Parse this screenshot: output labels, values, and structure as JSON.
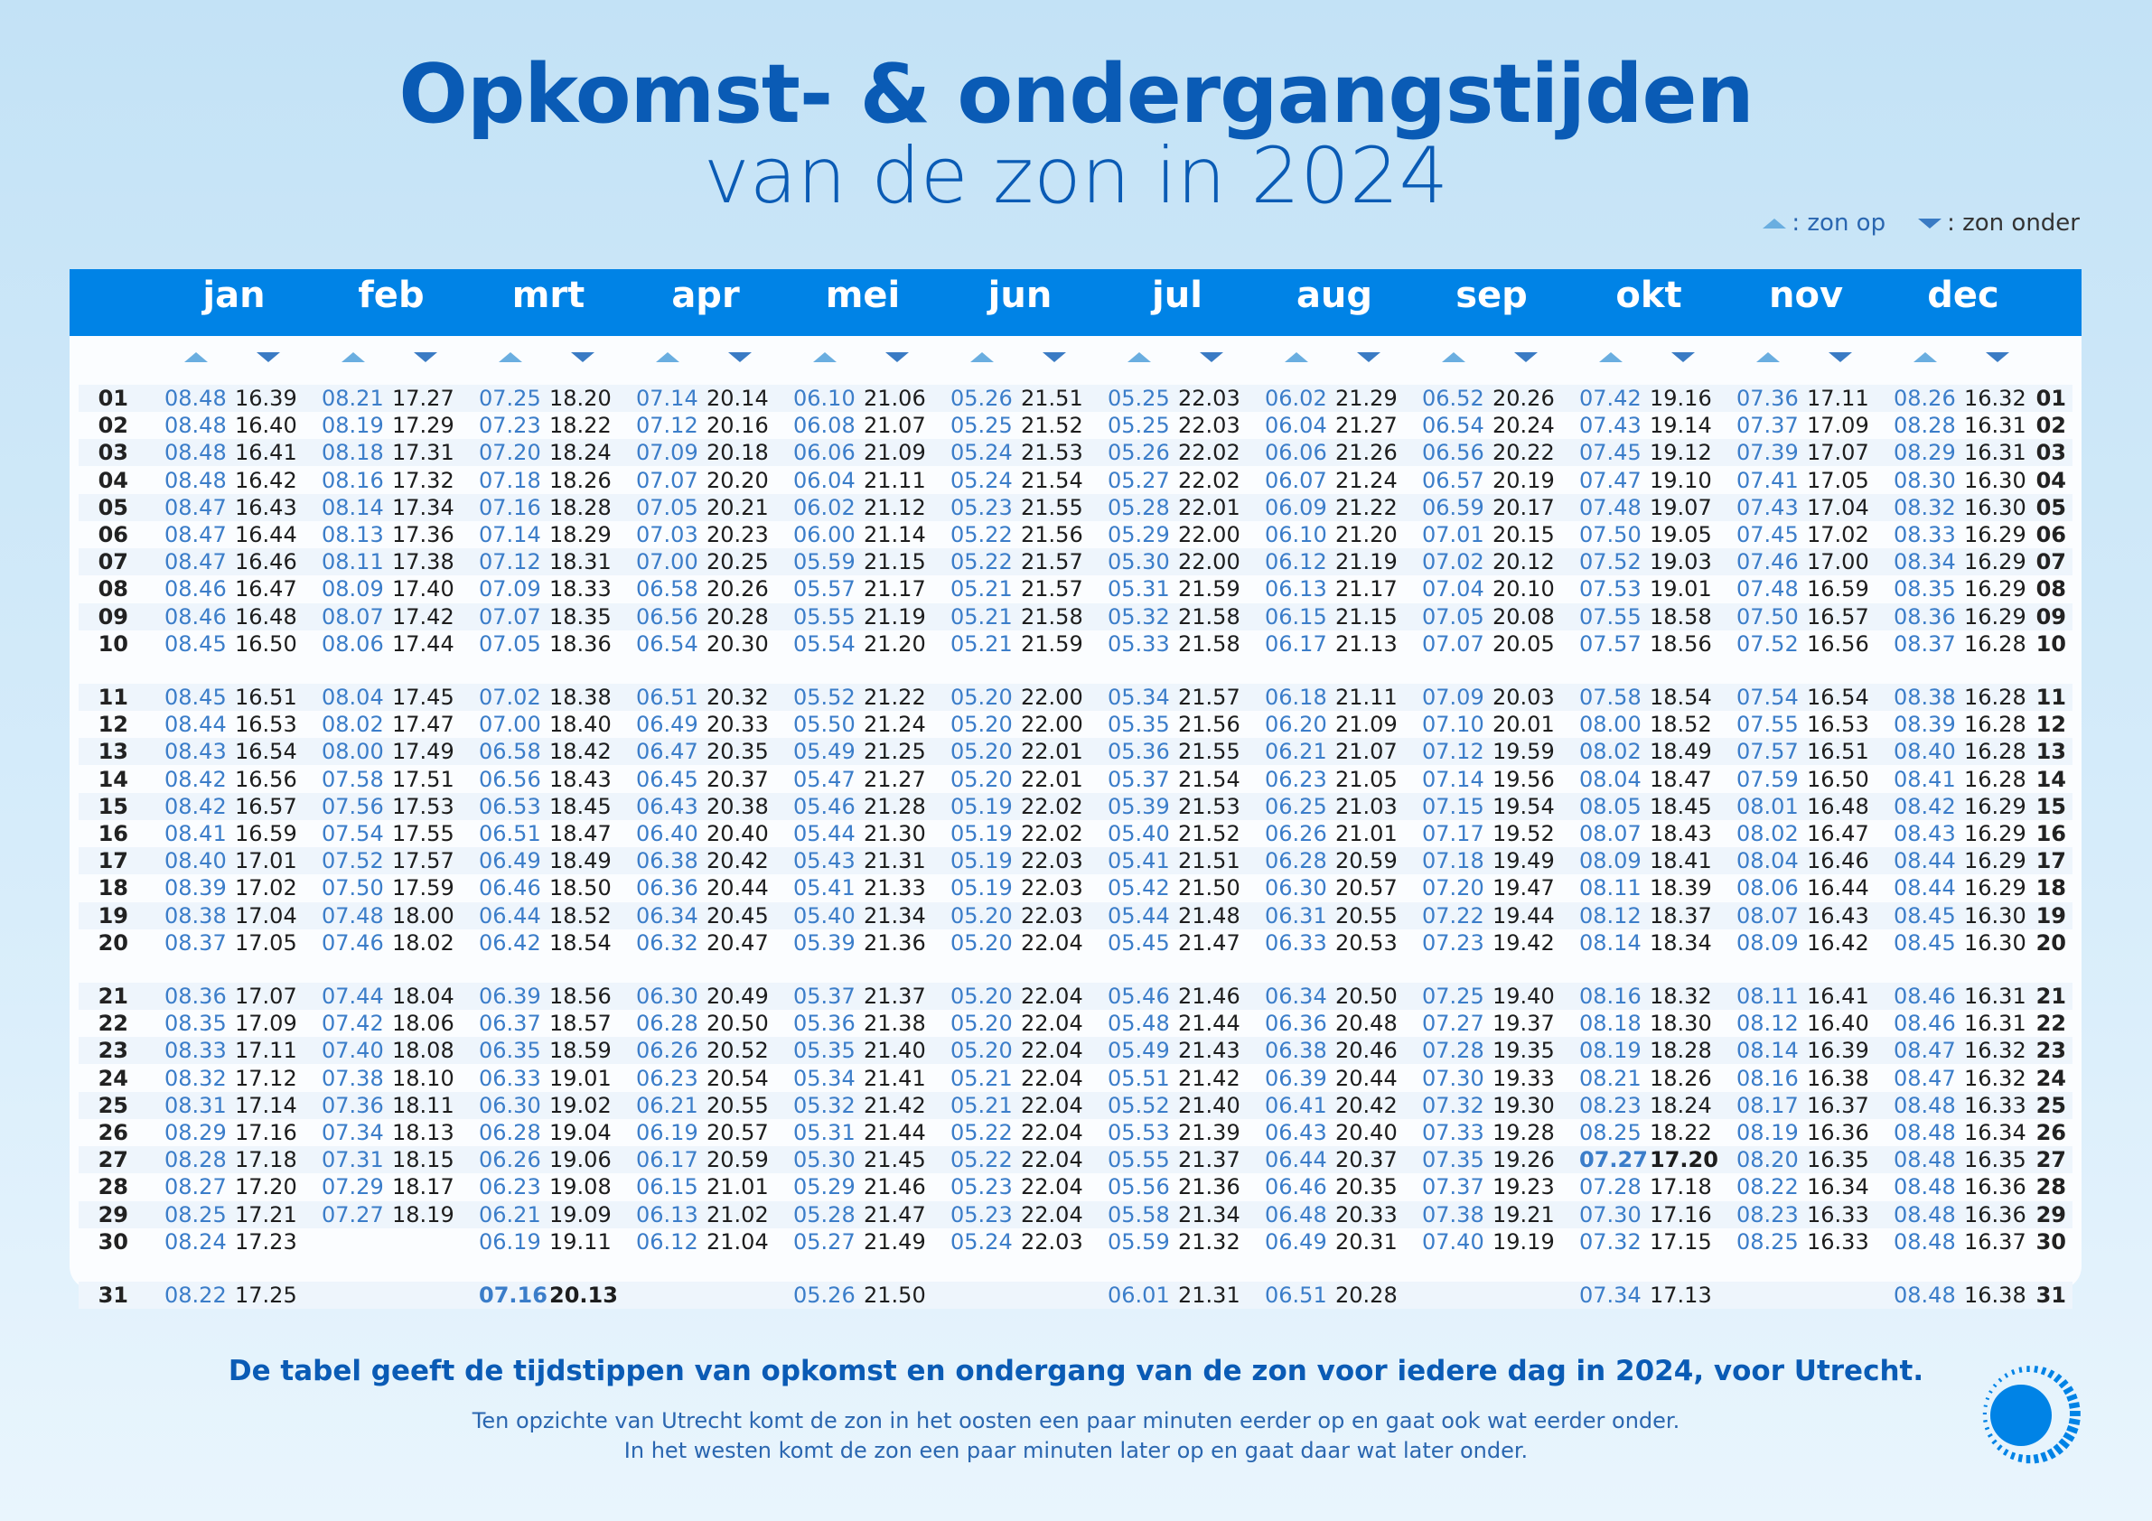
{
  "title": {
    "line1": "Opkomst- & ondergangstijden",
    "line2": "van de zon in 2024"
  },
  "legend": {
    "rise_label": ": zon op",
    "set_label": ": zon onder"
  },
  "colors": {
    "header": "#0083e6",
    "title": "#0a5bb5",
    "rise": "#3b7dc9",
    "set": "#1d1d1d"
  },
  "months": [
    {
      "name": "jan",
      "rise": [
        "08.48",
        "08.48",
        "08.48",
        "08.48",
        "08.47",
        "08.47",
        "08.47",
        "08.46",
        "08.46",
        "08.45",
        "08.45",
        "08.44",
        "08.43",
        "08.42",
        "08.42",
        "08.41",
        "08.40",
        "08.39",
        "08.38",
        "08.37",
        "08.36",
        "08.35",
        "08.33",
        "08.32",
        "08.31",
        "08.29",
        "08.28",
        "08.27",
        "08.25",
        "08.24",
        "08.22"
      ],
      "set": [
        "16.39",
        "16.40",
        "16.41",
        "16.42",
        "16.43",
        "16.44",
        "16.46",
        "16.47",
        "16.48",
        "16.50",
        "16.51",
        "16.53",
        "16.54",
        "16.56",
        "16.57",
        "16.59",
        "17.01",
        "17.02",
        "17.04",
        "17.05",
        "17.07",
        "17.09",
        "17.11",
        "17.12",
        "17.14",
        "17.16",
        "17.18",
        "17.20",
        "17.21",
        "17.23",
        "17.25"
      ]
    },
    {
      "name": "feb",
      "rise": [
        "08.21",
        "08.19",
        "08.18",
        "08.16",
        "08.14",
        "08.13",
        "08.11",
        "08.09",
        "08.07",
        "08.06",
        "08.04",
        "08.02",
        "08.00",
        "07.58",
        "07.56",
        "07.54",
        "07.52",
        "07.50",
        "07.48",
        "07.46",
        "07.44",
        "07.42",
        "07.40",
        "07.38",
        "07.36",
        "07.34",
        "07.31",
        "07.29",
        "07.27"
      ],
      "set": [
        "17.27",
        "17.29",
        "17.31",
        "17.32",
        "17.34",
        "17.36",
        "17.38",
        "17.40",
        "17.42",
        "17.44",
        "17.45",
        "17.47",
        "17.49",
        "17.51",
        "17.53",
        "17.55",
        "17.57",
        "17.59",
        "18.00",
        "18.02",
        "18.04",
        "18.06",
        "18.08",
        "18.10",
        "18.11",
        "18.13",
        "18.15",
        "18.17",
        "18.19"
      ]
    },
    {
      "name": "mrt",
      "rise": [
        "07.25",
        "07.23",
        "07.20",
        "07.18",
        "07.16",
        "07.14",
        "07.12",
        "07.09",
        "07.07",
        "07.05",
        "07.02",
        "07.00",
        "06.58",
        "06.56",
        "06.53",
        "06.51",
        "06.49",
        "06.46",
        "06.44",
        "06.42",
        "06.39",
        "06.37",
        "06.35",
        "06.33",
        "06.30",
        "06.28",
        "06.26",
        "06.23",
        "06.21",
        "06.19",
        "07.16"
      ],
      "set": [
        "18.20",
        "18.22",
        "18.24",
        "18.26",
        "18.28",
        "18.29",
        "18.31",
        "18.33",
        "18.35",
        "18.36",
        "18.38",
        "18.40",
        "18.42",
        "18.43",
        "18.45",
        "18.47",
        "18.49",
        "18.50",
        "18.52",
        "18.54",
        "18.56",
        "18.57",
        "18.59",
        "19.01",
        "19.02",
        "19.04",
        "19.06",
        "19.08",
        "19.09",
        "19.11",
        "20.13"
      ],
      "bold_day": 31
    },
    {
      "name": "apr",
      "rise": [
        "07.14",
        "07.12",
        "07.09",
        "07.07",
        "07.05",
        "07.03",
        "07.00",
        "06.58",
        "06.56",
        "06.54",
        "06.51",
        "06.49",
        "06.47",
        "06.45",
        "06.43",
        "06.40",
        "06.38",
        "06.36",
        "06.34",
        "06.32",
        "06.30",
        "06.28",
        "06.26",
        "06.23",
        "06.21",
        "06.19",
        "06.17",
        "06.15",
        "06.13",
        "06.12"
      ],
      "set": [
        "20.14",
        "20.16",
        "20.18",
        "20.20",
        "20.21",
        "20.23",
        "20.25",
        "20.26",
        "20.28",
        "20.30",
        "20.32",
        "20.33",
        "20.35",
        "20.37",
        "20.38",
        "20.40",
        "20.42",
        "20.44",
        "20.45",
        "20.47",
        "20.49",
        "20.50",
        "20.52",
        "20.54",
        "20.55",
        "20.57",
        "20.59",
        "21.01",
        "21.02",
        "21.04"
      ]
    },
    {
      "name": "mei",
      "rise": [
        "06.10",
        "06.08",
        "06.06",
        "06.04",
        "06.02",
        "06.00",
        "05.59",
        "05.57",
        "05.55",
        "05.54",
        "05.52",
        "05.50",
        "05.49",
        "05.47",
        "05.46",
        "05.44",
        "05.43",
        "05.41",
        "05.40",
        "05.39",
        "05.37",
        "05.36",
        "05.35",
        "05.34",
        "05.32",
        "05.31",
        "05.30",
        "05.29",
        "05.28",
        "05.27",
        "05.26"
      ],
      "set": [
        "21.06",
        "21.07",
        "21.09",
        "21.11",
        "21.12",
        "21.14",
        "21.15",
        "21.17",
        "21.19",
        "21.20",
        "21.22",
        "21.24",
        "21.25",
        "21.27",
        "21.28",
        "21.30",
        "21.31",
        "21.33",
        "21.34",
        "21.36",
        "21.37",
        "21.38",
        "21.40",
        "21.41",
        "21.42",
        "21.44",
        "21.45",
        "21.46",
        "21.47",
        "21.49",
        "21.50"
      ]
    },
    {
      "name": "jun",
      "rise": [
        "05.26",
        "05.25",
        "05.24",
        "05.24",
        "05.23",
        "05.22",
        "05.22",
        "05.21",
        "05.21",
        "05.21",
        "05.20",
        "05.20",
        "05.20",
        "05.20",
        "05.19",
        "05.19",
        "05.19",
        "05.19",
        "05.20",
        "05.20",
        "05.20",
        "05.20",
        "05.20",
        "05.21",
        "05.21",
        "05.22",
        "05.22",
        "05.23",
        "05.23",
        "05.24"
      ],
      "set": [
        "21.51",
        "21.52",
        "21.53",
        "21.54",
        "21.55",
        "21.56",
        "21.57",
        "21.57",
        "21.58",
        "21.59",
        "22.00",
        "22.00",
        "22.01",
        "22.01",
        "22.02",
        "22.02",
        "22.03",
        "22.03",
        "22.03",
        "22.04",
        "22.04",
        "22.04",
        "22.04",
        "22.04",
        "22.04",
        "22.04",
        "22.04",
        "22.04",
        "22.04",
        "22.03"
      ]
    },
    {
      "name": "jul",
      "rise": [
        "05.25",
        "05.25",
        "05.26",
        "05.27",
        "05.28",
        "05.29",
        "05.30",
        "05.31",
        "05.32",
        "05.33",
        "05.34",
        "05.35",
        "05.36",
        "05.37",
        "05.39",
        "05.40",
        "05.41",
        "05.42",
        "05.44",
        "05.45",
        "05.46",
        "05.48",
        "05.49",
        "05.51",
        "05.52",
        "05.53",
        "05.55",
        "05.56",
        "05.58",
        "05.59",
        "06.01"
      ],
      "set": [
        "22.03",
        "22.03",
        "22.02",
        "22.02",
        "22.01",
        "22.00",
        "22.00",
        "21.59",
        "21.58",
        "21.58",
        "21.57",
        "21.56",
        "21.55",
        "21.54",
        "21.53",
        "21.52",
        "21.51",
        "21.50",
        "21.48",
        "21.47",
        "21.46",
        "21.44",
        "21.43",
        "21.42",
        "21.40",
        "21.39",
        "21.37",
        "21.36",
        "21.34",
        "21.32",
        "21.31"
      ]
    },
    {
      "name": "aug",
      "rise": [
        "06.02",
        "06.04",
        "06.06",
        "06.07",
        "06.09",
        "06.10",
        "06.12",
        "06.13",
        "06.15",
        "06.17",
        "06.18",
        "06.20",
        "06.21",
        "06.23",
        "06.25",
        "06.26",
        "06.28",
        "06.30",
        "06.31",
        "06.33",
        "06.34",
        "06.36",
        "06.38",
        "06.39",
        "06.41",
        "06.43",
        "06.44",
        "06.46",
        "06.48",
        "06.49",
        "06.51"
      ],
      "set": [
        "21.29",
        "21.27",
        "21.26",
        "21.24",
        "21.22",
        "21.20",
        "21.19",
        "21.17",
        "21.15",
        "21.13",
        "21.11",
        "21.09",
        "21.07",
        "21.05",
        "21.03",
        "21.01",
        "20.59",
        "20.57",
        "20.55",
        "20.53",
        "20.50",
        "20.48",
        "20.46",
        "20.44",
        "20.42",
        "20.40",
        "20.37",
        "20.35",
        "20.33",
        "20.31",
        "20.28"
      ]
    },
    {
      "name": "sep",
      "rise": [
        "06.52",
        "06.54",
        "06.56",
        "06.57",
        "06.59",
        "07.01",
        "07.02",
        "07.04",
        "07.05",
        "07.07",
        "07.09",
        "07.10",
        "07.12",
        "07.14",
        "07.15",
        "07.17",
        "07.18",
        "07.20",
        "07.22",
        "07.23",
        "07.25",
        "07.27",
        "07.28",
        "07.30",
        "07.32",
        "07.33",
        "07.35",
        "07.37",
        "07.38",
        "07.40"
      ],
      "set": [
        "20.26",
        "20.24",
        "20.22",
        "20.19",
        "20.17",
        "20.15",
        "20.12",
        "20.10",
        "20.08",
        "20.05",
        "20.03",
        "20.01",
        "19.59",
        "19.56",
        "19.54",
        "19.52",
        "19.49",
        "19.47",
        "19.44",
        "19.42",
        "19.40",
        "19.37",
        "19.35",
        "19.33",
        "19.30",
        "19.28",
        "19.26",
        "19.23",
        "19.21",
        "19.19"
      ]
    },
    {
      "name": "okt",
      "rise": [
        "07.42",
        "07.43",
        "07.45",
        "07.47",
        "07.48",
        "07.50",
        "07.52",
        "07.53",
        "07.55",
        "07.57",
        "07.58",
        "08.00",
        "08.02",
        "08.04",
        "08.05",
        "08.07",
        "08.09",
        "08.11",
        "08.12",
        "08.14",
        "08.16",
        "08.18",
        "08.19",
        "08.21",
        "08.23",
        "08.25",
        "07.27",
        "07.28",
        "07.30",
        "07.32",
        "07.34"
      ],
      "set": [
        "19.16",
        "19.14",
        "19.12",
        "19.10",
        "19.07",
        "19.05",
        "19.03",
        "19.01",
        "18.58",
        "18.56",
        "18.54",
        "18.52",
        "18.49",
        "18.47",
        "18.45",
        "18.43",
        "18.41",
        "18.39",
        "18.37",
        "18.34",
        "18.32",
        "18.30",
        "18.28",
        "18.26",
        "18.24",
        "18.22",
        "17.20",
        "17.18",
        "17.16",
        "17.15",
        "17.13"
      ],
      "bold_day": 27
    },
    {
      "name": "nov",
      "rise": [
        "07.36",
        "07.37",
        "07.39",
        "07.41",
        "07.43",
        "07.45",
        "07.46",
        "07.48",
        "07.50",
        "07.52",
        "07.54",
        "07.55",
        "07.57",
        "07.59",
        "08.01",
        "08.02",
        "08.04",
        "08.06",
        "08.07",
        "08.09",
        "08.11",
        "08.12",
        "08.14",
        "08.16",
        "08.17",
        "08.19",
        "08.20",
        "08.22",
        "08.23",
        "08.25"
      ],
      "set": [
        "17.11",
        "17.09",
        "17.07",
        "17.05",
        "17.04",
        "17.02",
        "17.00",
        "16.59",
        "16.57",
        "16.56",
        "16.54",
        "16.53",
        "16.51",
        "16.50",
        "16.48",
        "16.47",
        "16.46",
        "16.44",
        "16.43",
        "16.42",
        "16.41",
        "16.40",
        "16.39",
        "16.38",
        "16.37",
        "16.36",
        "16.35",
        "16.34",
        "16.33",
        "16.33"
      ]
    },
    {
      "name": "dec",
      "rise": [
        "08.26",
        "08.28",
        "08.29",
        "08.30",
        "08.32",
        "08.33",
        "08.34",
        "08.35",
        "08.36",
        "08.37",
        "08.38",
        "08.39",
        "08.40",
        "08.41",
        "08.42",
        "08.43",
        "08.44",
        "08.44",
        "08.45",
        "08.45",
        "08.46",
        "08.46",
        "08.47",
        "08.47",
        "08.48",
        "08.48",
        "08.48",
        "08.48",
        "08.48",
        "08.48",
        "08.48"
      ],
      "set": [
        "16.32",
        "16.31",
        "16.31",
        "16.30",
        "16.30",
        "16.29",
        "16.29",
        "16.29",
        "16.29",
        "16.28",
        "16.28",
        "16.28",
        "16.28",
        "16.28",
        "16.29",
        "16.29",
        "16.29",
        "16.29",
        "16.30",
        "16.30",
        "16.31",
        "16.31",
        "16.32",
        "16.32",
        "16.33",
        "16.34",
        "16.35",
        "16.36",
        "16.36",
        "16.37",
        "16.38"
      ]
    }
  ],
  "days": [
    "01",
    "02",
    "03",
    "04",
    "05",
    "06",
    "07",
    "08",
    "09",
    "10",
    "11",
    "12",
    "13",
    "14",
    "15",
    "16",
    "17",
    "18",
    "19",
    "20",
    "21",
    "22",
    "23",
    "24",
    "25",
    "26",
    "27",
    "28",
    "29",
    "30",
    "31"
  ],
  "footer": {
    "main": "De tabel geeft de tijdstippen van opkomst en ondergang van de zon voor iedere dag in 2024, voor Utrecht.",
    "note1": "Ten opzichte van Utrecht komt de zon in het oosten een paar minuten eerder op en gaat ook wat eerder onder.",
    "note2": "In het westen komt de zon een paar minuten later op en gaat daar wat later onder."
  }
}
